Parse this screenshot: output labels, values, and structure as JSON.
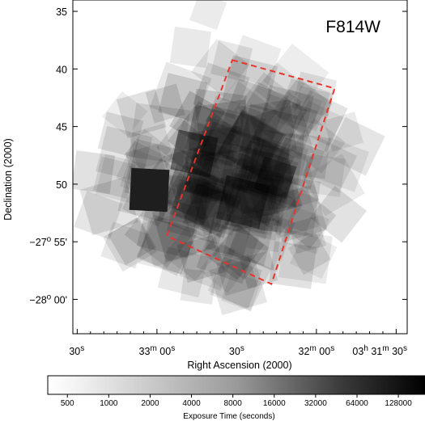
{
  "chart_data": {
    "type": "heatmap",
    "panel_label": "F814W",
    "xlabel": "Right Ascension (2000)",
    "ylabel": "Declination (2000)",
    "x_ticks": [
      {
        "pre": "30",
        "sup": "s",
        "post": ""
      },
      {
        "pre": "33",
        "sup": "m",
        "post": " 00",
        "sup2": "s"
      },
      {
        "pre": "30",
        "sup": "s",
        "post": ""
      },
      {
        "pre": "32",
        "sup": "m",
        "post": " 00",
        "sup2": "s"
      },
      {
        "pre": "03",
        "sup": "h",
        "post": " 31",
        "sup2": "m",
        "post2": " 30",
        "sup3": "s"
      }
    ],
    "y_ticks": [
      {
        "pre": "35",
        "sup": "",
        "post": ""
      },
      {
        "pre": "40",
        "sup": "",
        "post": ""
      },
      {
        "pre": "45",
        "sup": "",
        "post": ""
      },
      {
        "pre": "50",
        "sup": "",
        "post": ""
      },
      {
        "pre": "−27",
        "sup": "o",
        "post": " 55'"
      },
      {
        "pre": "−28",
        "sup": "o",
        "post": " 00'"
      }
    ],
    "footprint": {
      "color": "#e8352b",
      "style": "dashed",
      "corners": [
        [
          0.477,
          0.18
        ],
        [
          0.783,
          0.265
        ],
        [
          0.594,
          0.851
        ],
        [
          0.281,
          0.707
        ]
      ]
    },
    "colorbar": {
      "title": "Exposure Time (seconds)",
      "scale": "log",
      "range": [
        360,
        200000
      ],
      "tick_labels": [
        "500",
        "1000",
        "2000",
        "4000",
        "8000",
        "16000",
        "32000",
        "64000",
        "128000"
      ],
      "colors": [
        "#ffffff",
        "#000000"
      ]
    }
  }
}
